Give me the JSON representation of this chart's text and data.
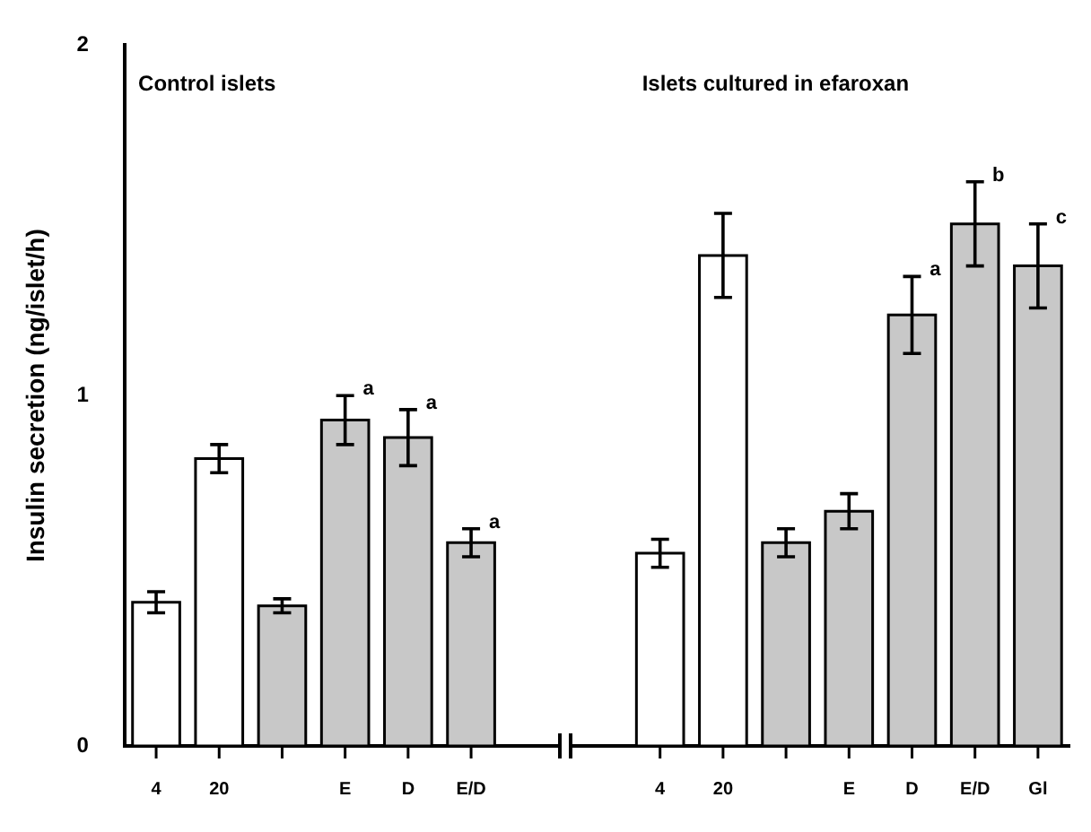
{
  "chart_data": {
    "type": "bar",
    "ylabel": "Insulin secretion (ng/islet/h)",
    "categories": [
      "4",
      "20",
      null,
      "E",
      "D",
      "E/D",
      null,
      null,
      "4",
      "20",
      null,
      "E",
      "D",
      "E/D",
      "Gl"
    ],
    "series": [
      {
        "color": "#ffffff",
        "values": [
          0.41,
          0.82,
          null,
          null,
          null,
          null,
          null,
          null,
          0.55,
          1.4,
          null,
          null,
          null,
          null,
          null
        ],
        "errors": [
          0.03,
          0.04,
          null,
          null,
          null,
          null,
          null,
          null,
          0.04,
          0.12,
          null,
          null,
          null,
          null,
          null
        ]
      },
      {
        "color": "#c8c8c8",
        "values": [
          null,
          null,
          0.4,
          0.93,
          0.88,
          0.58,
          null,
          null,
          null,
          null,
          0.58,
          0.67,
          1.23,
          1.49,
          1.37
        ],
        "errors": [
          null,
          null,
          0.02,
          0.07,
          0.08,
          0.04,
          null,
          null,
          null,
          null,
          0.04,
          0.05,
          0.11,
          0.12,
          0.12
        ],
        "value_labels": [
          null,
          null,
          null,
          "a",
          "a",
          "a",
          null,
          null,
          null,
          null,
          null,
          null,
          "a",
          "b",
          "c"
        ]
      }
    ],
    "annotations": [
      "Control islets",
      "Islets cultured in efaroxan"
    ],
    "ylim": [
      0,
      2
    ],
    "yticks": [
      0,
      1,
      2
    ]
  }
}
